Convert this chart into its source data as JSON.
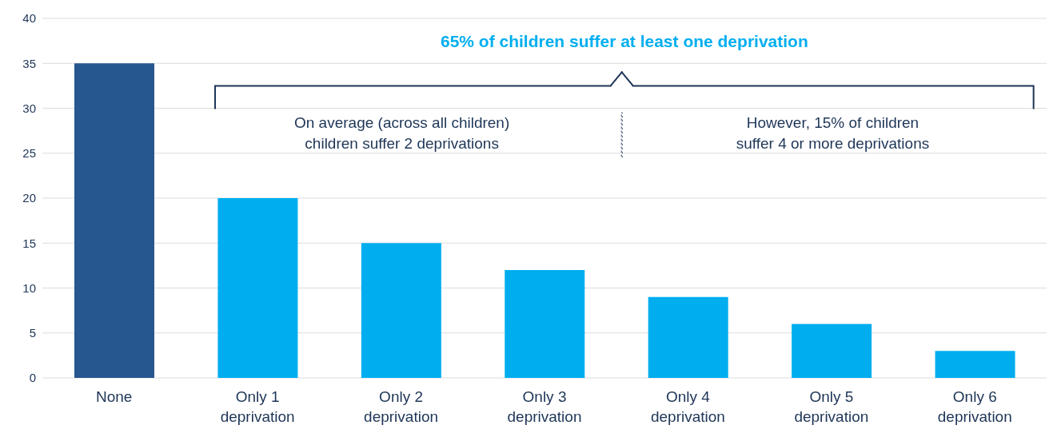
{
  "chart_data": {
    "type": "bar",
    "categories": [
      "None",
      "Only 1 deprivation",
      "Only 2 deprivation",
      "Only 3 deprivation",
      "Only 4 deprivation",
      "Only 5 deprivation",
      "Only 6 deprivation"
    ],
    "values": [
      35,
      20,
      15,
      12,
      9,
      6,
      3
    ],
    "colors": [
      "#27578f",
      "#00aeef",
      "#00aeef",
      "#00aeef",
      "#00aeef",
      "#00aeef",
      "#00aeef"
    ],
    "ylim": [
      0,
      40
    ],
    "yticks": [
      0,
      5,
      10,
      15,
      20,
      25,
      30,
      35,
      40
    ],
    "grid": "y",
    "annotations": [
      "65% of children suffer at least one deprivation",
      "On average (across all children) children suffer 2 deprivations",
      "However, 15% of children suffer 4 or more deprivations"
    ]
  }
}
